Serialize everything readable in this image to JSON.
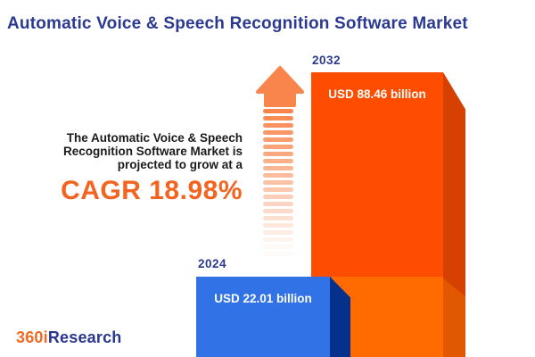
{
  "title": "Automatic Voice & Speech Recognition Software Market",
  "annotation": {
    "line1": "The Automatic Voice & Speech",
    "line2": "Recognition Software Market is",
    "line3": "projected to grow at a",
    "cagr": "CAGR 18.98%"
  },
  "bars": [
    {
      "year": "2024",
      "value_label": "USD 22.01 billion"
    },
    {
      "year": "2032",
      "value_label": "USD 88.46 billion"
    }
  ],
  "logo": {
    "part1": "360i",
    "part2": "Research"
  },
  "colors": {
    "title_blue": "#2B3990",
    "cagr_orange": "#F2641F",
    "bar_blue_front": "#3173E6",
    "bar_blue_side": "#05318C",
    "bar_orange_front": "#FF4D00",
    "bar_orange_side": "#D64000",
    "bar_orange_light_front": "#FF6B00",
    "bar_orange_light_side": "#E25800",
    "arrow_orange": "#F9854C",
    "logo_orange": "#F26924",
    "logo_blue": "#28368D"
  },
  "chart_data": {
    "type": "bar",
    "title": "Automatic Voice & Speech Recognition Software Market",
    "categories": [
      "2024",
      "2032"
    ],
    "values": [
      22.01,
      88.46
    ],
    "value_labels": [
      "USD 22.01 billion",
      "USD 88.46 billion"
    ],
    "unit": "USD billion",
    "cagr_percent": 18.98,
    "xlabel": "",
    "ylabel": "",
    "legend": "none",
    "grid": false,
    "annotations": [
      "The Automatic Voice & Speech Recognition Software Market is projected to grow at a CAGR 18.98%"
    ]
  }
}
